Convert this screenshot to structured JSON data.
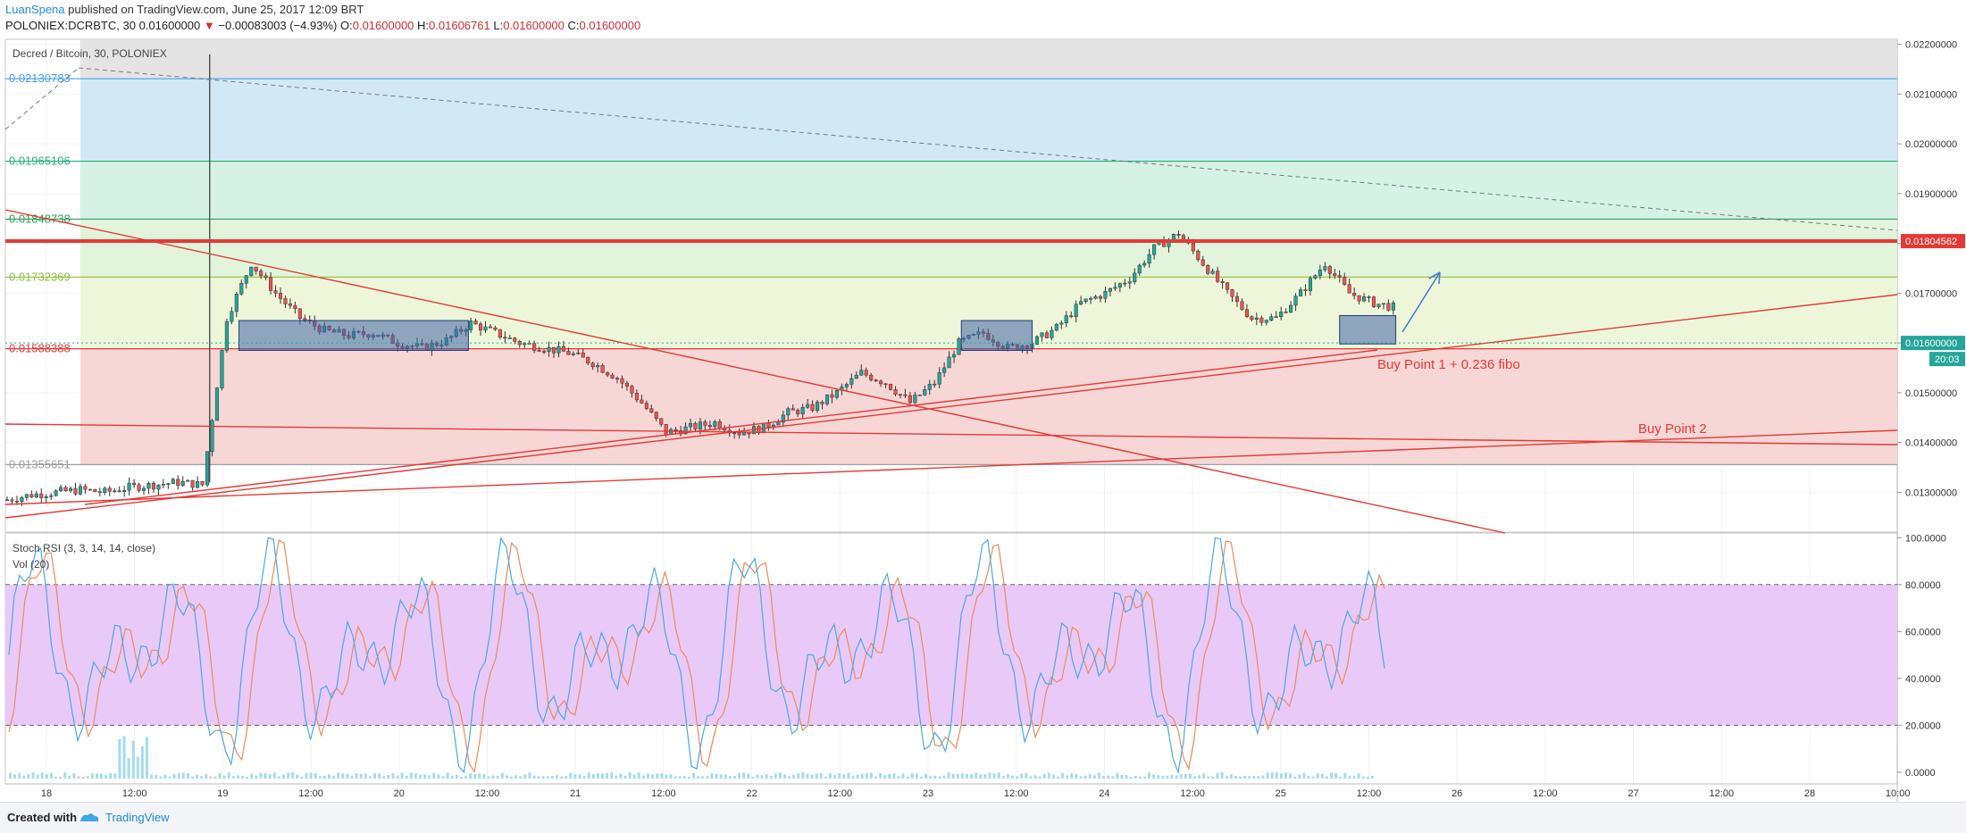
{
  "header": {
    "author": "LuanSpena",
    "published": " published on TradingView.com, June 25, 2017 12:09 BRT",
    "ticker": "POLONIEX:DCRBTC, 30",
    "last": "0.01600000",
    "arrow": "▼",
    "change": "−0.00083003 (−4.93%)",
    "open_label": "O:",
    "open": "0.01600000",
    "high_label": "H:",
    "high": "0.01606761",
    "low_label": "L:",
    "low": "0.01600000",
    "close_label": "C:",
    "close": "0.01600000"
  },
  "main_pane": {
    "title": "Decred / Bitcoin, 30, POLONIEX"
  },
  "osc_pane": {
    "title": "Stoch RSI (3, 3, 14, 14, close)",
    "vol_label": "Vol (20)"
  },
  "annotations": {
    "buy1": "Buy Point 1 + 0.236 fibo",
    "buy2": "Buy Point 2",
    "price_tag_red": "0.01804562",
    "price_tag_green": "0.01600000",
    "timer_tag": "20:03"
  },
  "footer": {
    "created": "Created with",
    "brand": "TradingView"
  },
  "colors": {
    "fib_top": "#e4e4e4",
    "fib_1": "#d3e8f5",
    "fib_2": "#d6f1e6",
    "fib_3": "#e2f5dc",
    "fib_4": "#eef6d9",
    "fib_5": "#f7d6d6",
    "resistance": "#e53935",
    "trend": "#e53935",
    "box": "#3f63a8",
    "stoch_k": "#4aa8e8",
    "stoch_d": "#ef8a5a",
    "osc_band": "#e9c9f8",
    "candle_up": "#26a69a",
    "candle_down": "#ef5350",
    "volume": "#8fd3ec"
  },
  "chart_data": [
    {
      "type": "line",
      "title": "Decred / Bitcoin, 30, POLONIEX",
      "x_ticks": [
        "18",
        "12:00",
        "19",
        "12:00",
        "20",
        "12:00",
        "21",
        "12:00",
        "22",
        "12:00",
        "23",
        "12:00",
        "24",
        "12:00",
        "25",
        "12:00",
        "26",
        "12:00",
        "27",
        "12:00",
        "28",
        "10:00"
      ],
      "y_ticks": [
        "0.02200000",
        "0.02100000",
        "0.02000000",
        "0.01900000",
        "0.01800000",
        "0.01700000",
        "0.01600000",
        "0.01500000",
        "0.01400000",
        "0.01300000"
      ],
      "ylim": [
        0.0122,
        0.0221
      ],
      "fib_levels": [
        {
          "label": "0.02130783",
          "value": 0.02130783,
          "color": "#4aa3df"
        },
        {
          "label": "0.01965106",
          "value": 0.01965106,
          "color": "#22b07d"
        },
        {
          "label": "0.01848738",
          "value": 0.01848738,
          "color": "#2e9e57"
        },
        {
          "label": "0.01732369",
          "value": 0.01732369,
          "color": "#8fbf3c"
        },
        {
          "label": "0.01588388",
          "value": 0.01588388,
          "color": "#e53935"
        },
        {
          "label": "0.01355651",
          "value": 0.01355651,
          "color": "#9e9e9e"
        }
      ],
      "resistance": 0.01804562,
      "series": [
        {
          "x": [
            0,
            1,
            2,
            3,
            4,
            5,
            6,
            7,
            8,
            8.3,
            9,
            10,
            11,
            12,
            13,
            14,
            15,
            16,
            17,
            18,
            19,
            20,
            21,
            22,
            23,
            24,
            25,
            26,
            27,
            28,
            29,
            30,
            31,
            32,
            33,
            34,
            35,
            36,
            37,
            38,
            39,
            40,
            41,
            42,
            43,
            44,
            45,
            46,
            47,
            48,
            49,
            50,
            51,
            52,
            53,
            54,
            55,
            56
          ],
          "values": [
            0.01285,
            0.01295,
            0.013,
            0.01305,
            0.013,
            0.0131,
            0.01315,
            0.0132,
            0.01315,
            0.0165,
            0.0176,
            0.017,
            0.0165,
            0.01625,
            0.01615,
            0.0162,
            0.016,
            0.0159,
            0.01605,
            0.0164,
            0.0162,
            0.016,
            0.0159,
            0.0158,
            0.0156,
            0.0153,
            0.0148,
            0.0142,
            0.0143,
            0.0144,
            0.0142,
            0.0143,
            0.0146,
            0.0147,
            0.015,
            0.0154,
            0.0152,
            0.0148,
            0.0152,
            0.016,
            0.0162,
            0.0159,
            0.016,
            0.0163,
            0.0168,
            0.017,
            0.0173,
            0.0179,
            0.0182,
            0.0176,
            0.017,
            0.0165,
            0.0165,
            0.017,
            0.0176,
            0.017,
            0.0168,
            0.0167
          ]
        }
      ]
    },
    {
      "type": "line",
      "title": "Stoch RSI (3, 3, 14, 14, close)",
      "y_ticks": [
        "100.0000",
        "80.0000",
        "60.0000",
        "40.0000",
        "20.0000",
        "0.0000"
      ],
      "ylim": [
        -5,
        102
      ],
      "bands": [
        20,
        80
      ]
    }
  ]
}
